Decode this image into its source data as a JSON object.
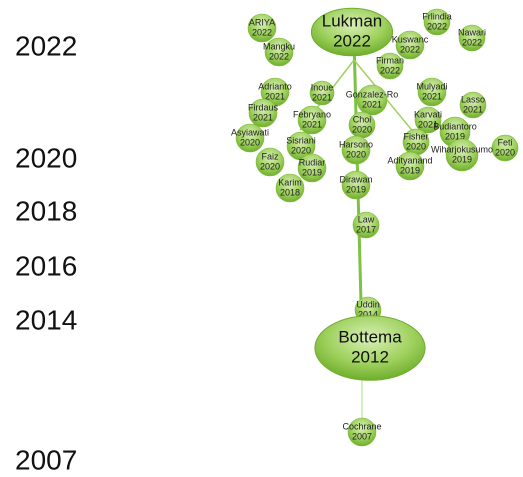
{
  "timeline": {
    "years": [
      2022,
      2020,
      2018,
      2016,
      2014,
      2007
    ]
  },
  "nodes": [
    {
      "label": "Lukman",
      "year": 2022
    },
    {
      "label": "ARIYA",
      "year": 2022
    },
    {
      "label": "Mangku",
      "year": 2022
    },
    {
      "label": "Frlindia",
      "year": 2022
    },
    {
      "label": "Nawari",
      "year": 2022
    },
    {
      "label": "Kuswanc",
      "year": 2022
    },
    {
      "label": "Firman",
      "year": 2022
    },
    {
      "label": "Adrianto",
      "year": 2021
    },
    {
      "label": "Inoue",
      "year": 2021
    },
    {
      "label": "Gonzalez-Ro",
      "year": 2021
    },
    {
      "label": "Mulyadi",
      "year": 2021
    },
    {
      "label": "Lasso",
      "year": 2021
    },
    {
      "label": "Firdaus",
      "year": 2021
    },
    {
      "label": "Febryano",
      "year": 2021
    },
    {
      "label": "Karvati",
      "year": 2021
    },
    {
      "label": "Choi",
      "year": 2020
    },
    {
      "label": "Budiantoro",
      "year": 2019
    },
    {
      "label": "Asyiawati",
      "year": 2020
    },
    {
      "label": "Sisriani",
      "year": 2020
    },
    {
      "label": "Harsono",
      "year": 2020
    },
    {
      "label": "Fisher",
      "year": 2020
    },
    {
      "label": "Feti",
      "year": 2020
    },
    {
      "label": "Faiz",
      "year": 2020
    },
    {
      "label": "Rudiar",
      "year": 2019
    },
    {
      "label": "Wiharjokusumo",
      "year": 2019
    },
    {
      "label": "Adityanand",
      "year": 2019
    },
    {
      "label": "Karim",
      "year": 2018
    },
    {
      "label": "Dirawan",
      "year": 2019
    },
    {
      "label": "Law",
      "year": 2017
    },
    {
      "label": "Uddin",
      "year": 2014
    },
    {
      "label": "Bottema",
      "year": 2012
    },
    {
      "label": "Cochrane",
      "year": 2007
    }
  ]
}
